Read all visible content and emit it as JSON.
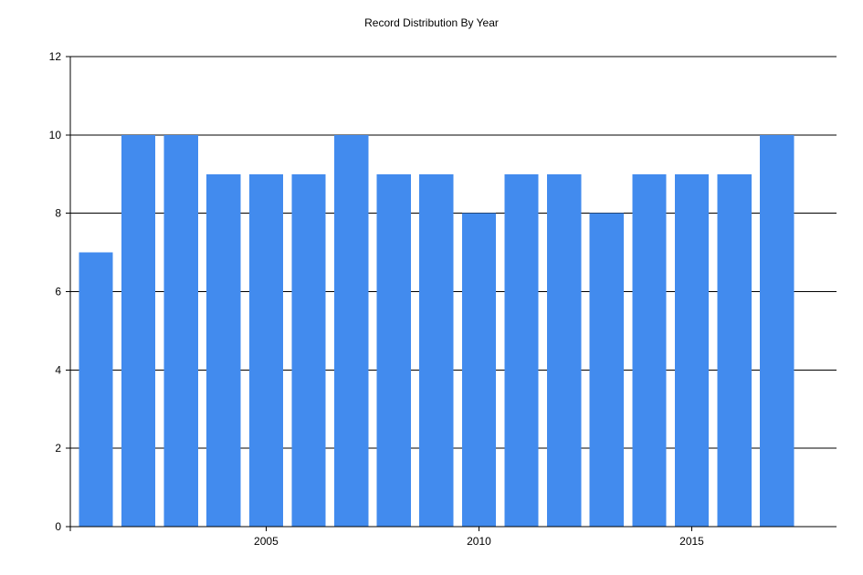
{
  "chart_data": {
    "type": "bar",
    "title": "Record Distribution By Year",
    "xlabel": "",
    "ylabel": "",
    "x": [
      2001,
      2002,
      2003,
      2004,
      2005,
      2006,
      2007,
      2008,
      2009,
      2010,
      2011,
      2012,
      2013,
      2014,
      2015,
      2016,
      2017
    ],
    "values": [
      7,
      10,
      10,
      9,
      9,
      9,
      10,
      9,
      9,
      8,
      9,
      9,
      8,
      9,
      9,
      9,
      10
    ],
    "ylim": [
      0,
      12
    ],
    "yticks": [
      0,
      2,
      4,
      6,
      8,
      10,
      12
    ],
    "xticks": [
      2005,
      2010,
      2015
    ],
    "xlim": [
      2000.4,
      2018.4
    ],
    "bar_color": "#428bee",
    "grid": "horizontal",
    "legend": "none"
  }
}
